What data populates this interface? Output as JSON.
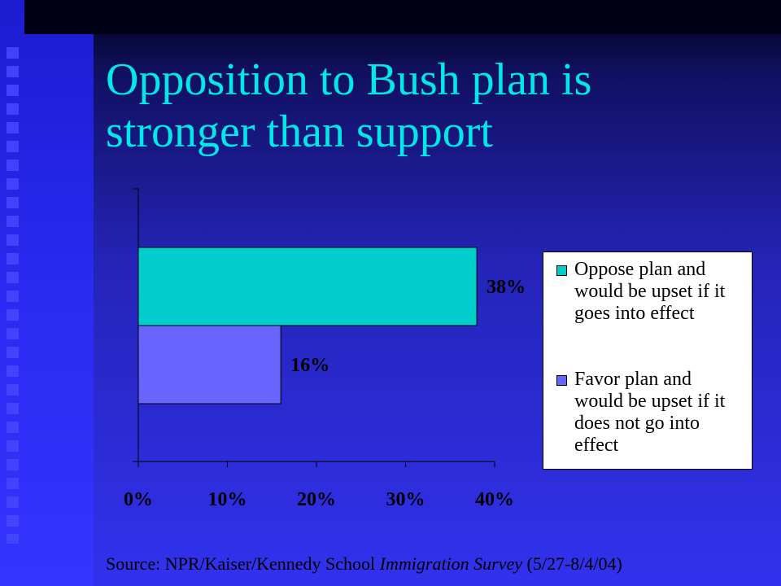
{
  "slide": {
    "title_line1": "Opposition to Bush plan is",
    "title_line2": "stronger than support",
    "source_prefix": "Source: NPR/Kaiser/Kennedy School ",
    "source_italic": "Immigration Survey",
    "source_suffix": " (5/27-8/4/04)"
  },
  "colors": {
    "title": "#00e8e8",
    "oppose": "#00cccc",
    "favor": "#6666ff",
    "plot_background": "#ffffff"
  },
  "chart_data": {
    "type": "bar",
    "orientation": "horizontal",
    "title": "",
    "xlabel": "",
    "ylabel": "",
    "xlim": [
      0,
      40
    ],
    "x_ticks": [
      "0%",
      "10%",
      "20%",
      "30%",
      "40%"
    ],
    "grid": false,
    "legend_position": "right",
    "series": [
      {
        "name": "Oppose plan and would be upset if it goes into effect",
        "legend_lines": [
          "Oppose plan and",
          "would be upset if it",
          "goes into effect"
        ],
        "values": [
          38
        ],
        "label": "38%",
        "color": "#00cccc"
      },
      {
        "name": "Favor plan and would be upset if it does not go into effect",
        "legend_lines": [
          "Favor plan and",
          "would be upset if it",
          "does not go into",
          "effect"
        ],
        "values": [
          16
        ],
        "label": "16%",
        "color": "#6666ff"
      }
    ]
  }
}
